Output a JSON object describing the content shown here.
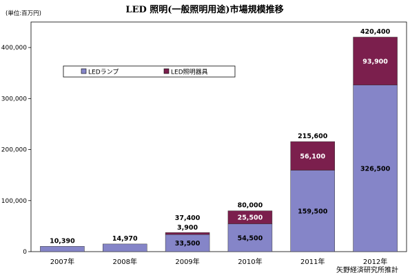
{
  "title": "LED 照明(一般照明用途)市場規模推移",
  "unit_label": "(単位:百万円)",
  "source": "矢野経済研究所推計",
  "colors": {
    "lamp": "#8585c8",
    "fixture": "#7b1f4d",
    "label_light": "#ffffff",
    "label_dark": "#000000"
  },
  "chart_data": {
    "type": "bar",
    "stacked": true,
    "categories": [
      "2007年",
      "2008年",
      "2009年",
      "2010年",
      "2011年",
      "2012年"
    ],
    "series": [
      {
        "name": "LEDランプ",
        "values": [
          10390,
          14970,
          33500,
          54500,
          159500,
          326500
        ],
        "labels": [
          "",
          "",
          "33,500",
          "54,500",
          "159,500",
          "326,500"
        ]
      },
      {
        "name": "LED照明器具",
        "values": [
          0,
          0,
          3900,
          25500,
          56100,
          93900
        ],
        "labels": [
          "",
          "",
          "3,900",
          "25,500",
          "56,100",
          "93,900"
        ]
      }
    ],
    "totals": [
      10390,
      14970,
      37400,
      80000,
      215600,
      420400
    ],
    "total_labels": [
      "10,390",
      "14,970",
      "37,400",
      "80,000",
      "215,600",
      "420,400"
    ],
    "ylim": [
      0,
      450000
    ],
    "yticks": [
      0,
      100000,
      200000,
      300000,
      400000
    ],
    "ytick_labels": [
      "0",
      "100,000",
      "200,000",
      "300,000",
      "400,000"
    ],
    "legend_position": "top-left",
    "grid": false
  }
}
